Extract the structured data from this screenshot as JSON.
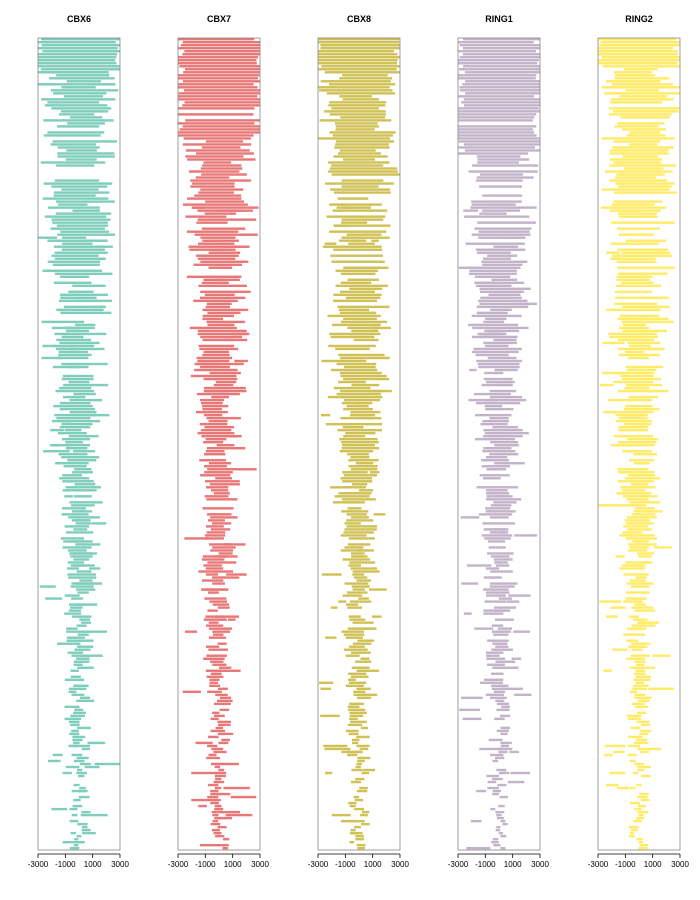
{
  "chart_data": {
    "type": "heatmap",
    "description_kind": "peak coverage heatmaps",
    "x_ticks": [
      -3000,
      -1000,
      1000,
      3000
    ],
    "x_tick_labels": [
      "-3000",
      "-1000",
      "1000",
      "3000"
    ],
    "xlim": [
      -3000,
      3000
    ],
    "panels": [
      {
        "title": "CBX6",
        "color": "#7fcdbb"
      },
      {
        "title": "CBX7",
        "color": "#e87878"
      },
      {
        "title": "CBX8",
        "color": "#cfc155"
      },
      {
        "title": "RING1",
        "color": "#c3b3c9"
      },
      {
        "title": "RING2",
        "color": "#ffeb66"
      }
    ]
  }
}
